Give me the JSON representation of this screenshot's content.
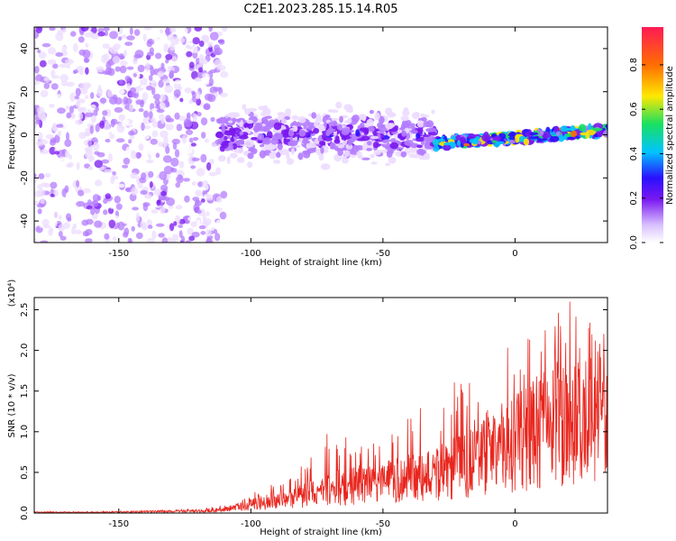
{
  "title": "C2E1.2023.285.15.14.R05",
  "colors": {
    "snr_line": "#e8261e",
    "spectrogram_scale": [
      "#ffffff",
      "#ecdcff",
      "#b47cff",
      "#7a18f0",
      "#2a10ff",
      "#00c4ff",
      "#18e060",
      "#ffe800",
      "#ff7000",
      "#ff1a55"
    ]
  },
  "chart_data": [
    {
      "type": "heatmap",
      "title": "C2E1.2023.285.15.14.R05",
      "xlabel": "Height of straight line (km)",
      "ylabel": "Frequency (Hz)",
      "xlim": [
        -182,
        35
      ],
      "ylim": [
        -50,
        50
      ],
      "x_ticks": [
        -150,
        -100,
        -50,
        0
      ],
      "y_ticks": [
        -40,
        -20,
        0,
        20,
        40
      ],
      "colorbar": {
        "label": "Normalized spectral amplitude",
        "range": [
          0.0,
          0.97
        ],
        "ticks": [
          "0.0",
          "0.2",
          "0.4",
          "0.6",
          "0.8"
        ]
      },
      "regions": [
        {
          "x_range": [
            -182,
            -110
          ],
          "description": "broadband noise",
          "freq_spread": [
            -50,
            50
          ],
          "amplitude": [
            0.0,
            0.3
          ]
        },
        {
          "x_range": [
            -112,
            -30
          ],
          "description": "main band",
          "freq_center": 0,
          "freq_spread": [
            -15,
            15
          ],
          "amplitude": [
            0.1,
            0.4
          ]
        },
        {
          "x_range": [
            -30,
            35
          ],
          "description": "narrow band",
          "freq_center_start": -4,
          "freq_center_end": 2,
          "amplitude": [
            0.3,
            0.95
          ]
        }
      ]
    },
    {
      "type": "line",
      "xlabel": "Height of straight line (km)",
      "ylabel": "SNR (10 * v/v)",
      "y_scale_note": "(x10⁴)",
      "xlim": [
        -182,
        35
      ],
      "ylim": [
        0,
        2.65
      ],
      "x_ticks": [
        -150,
        -100,
        -50,
        0
      ],
      "y_ticks": [
        "0.0",
        "0.5",
        "1.0",
        "1.5",
        "2.0",
        "2.5"
      ],
      "series": [
        {
          "x": [
            -182,
            -160,
            -140,
            -120,
            -110,
            -100,
            -90,
            -80,
            -70,
            -60,
            -50,
            -40,
            -30,
            -20,
            -10,
            0,
            10,
            20,
            30,
            35
          ],
          "y": [
            0.01,
            0.01,
            0.02,
            0.03,
            0.05,
            0.12,
            0.18,
            0.25,
            0.35,
            0.4,
            0.45,
            0.5,
            0.55,
            0.7,
            0.9,
            1.0,
            1.2,
            1.35,
            1.5,
            1.6
          ],
          "y_peak": [
            0.02,
            0.02,
            0.03,
            0.05,
            0.1,
            0.25,
            0.4,
            0.6,
            1.05,
            0.9,
            1.0,
            1.25,
            1.35,
            1.75,
            1.9,
            2.1,
            2.4,
            2.65,
            2.4,
            2.3
          ]
        }
      ]
    }
  ]
}
